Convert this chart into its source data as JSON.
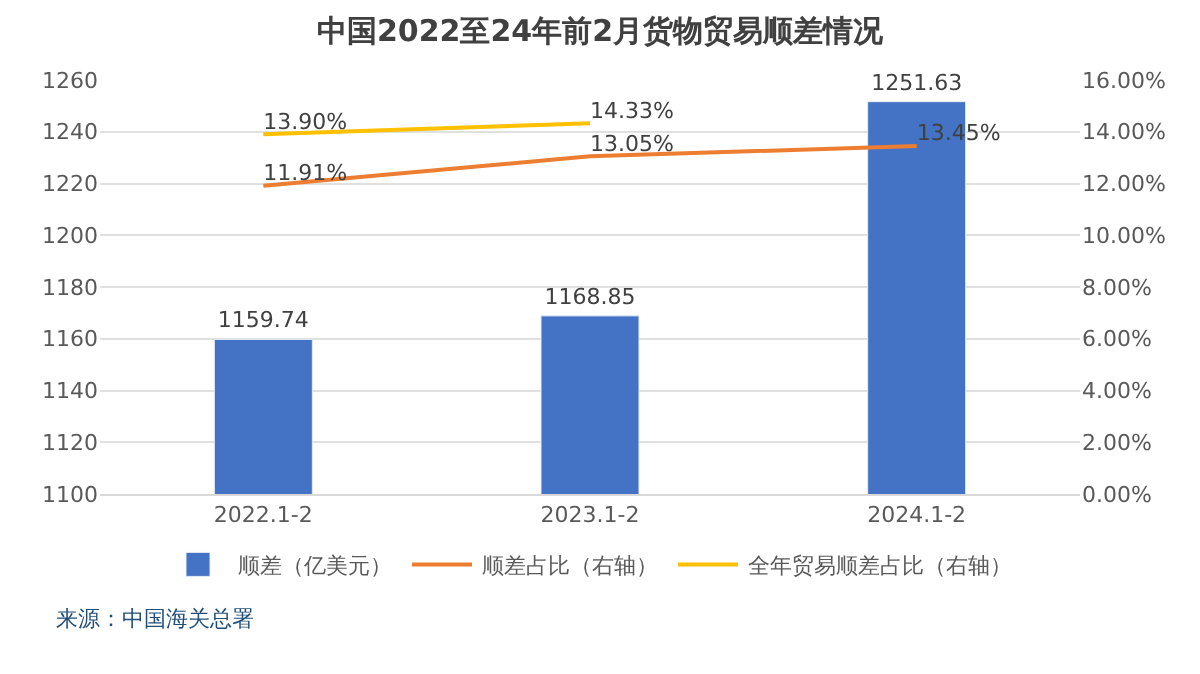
{
  "chart_data": {
    "type": "bar",
    "title": "中国2022至24年前2月货物贸易顺差情况",
    "categories": [
      "2022.1-2",
      "2023.1-2",
      "2024.1-2"
    ],
    "series": [
      {
        "name": "顺差（亿美元）",
        "color": "#4472c4",
        "values": [
          1159.74,
          1168.85,
          1251.63
        ],
        "value_labels": [
          "1159.74",
          "1168.85",
          "1251.63"
        ]
      },
      {
        "name": "顺差占比（右轴）",
        "type": "line",
        "axis": "y2",
        "color": "#ed7d31",
        "values": [
          11.91,
          13.05,
          13.45
        ],
        "value_labels": [
          "11.91%",
          "13.05%",
          "13.45%"
        ]
      },
      {
        "name": "全年贸易顺差占比（右轴）",
        "type": "line",
        "axis": "y2",
        "color": "#ffc000",
        "values": [
          13.9,
          14.33,
          null
        ],
        "value_labels": [
          "13.90%",
          "14.33%",
          null
        ]
      }
    ],
    "ylim": [
      1100,
      1260
    ],
    "yticks": [
      1100,
      1120,
      1140,
      1160,
      1180,
      1200,
      1220,
      1240,
      1260
    ],
    "y2lim": [
      0,
      16
    ],
    "y2ticks": [
      {
        "value": 0,
        "label": "0.00%"
      },
      {
        "value": 2,
        "label": "2.00%"
      },
      {
        "value": 4,
        "label": "4.00%"
      },
      {
        "value": 6,
        "label": "6.00%"
      },
      {
        "value": 8,
        "label": "8.00%"
      },
      {
        "value": 10,
        "label": "10.00%"
      },
      {
        "value": 12,
        "label": "12.00%"
      },
      {
        "value": 14,
        "label": "14.00%"
      },
      {
        "value": 16,
        "label": "16.00%"
      }
    ],
    "grid": "y",
    "legend": "bottom",
    "marker": "none",
    "annotations": [
      "来源：中国海关总署"
    ]
  }
}
